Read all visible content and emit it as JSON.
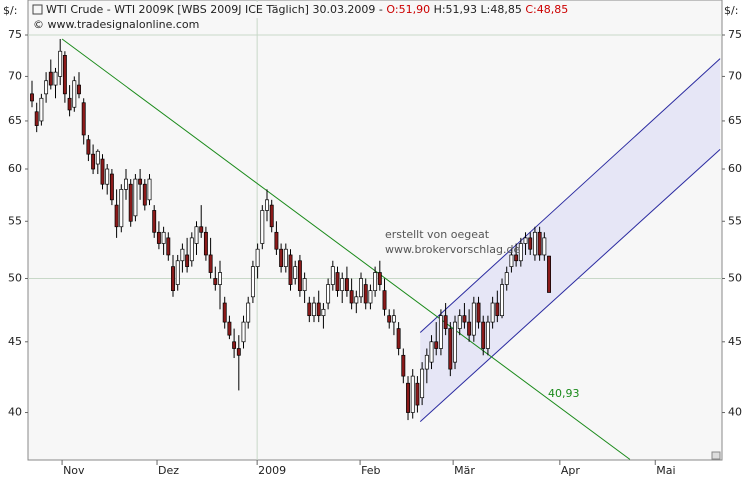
{
  "chart_data": {
    "type": "candlestick",
    "unit_left": "$/:",
    "unit_right": "$/:",
    "header": {
      "instrument": "WTI Crude - WTI 2009K [WBS 2009J ICE  Täglich] 30.03.2009 - ",
      "open": "O:51,90",
      "high": " H:51,93",
      "low": " L:48,85",
      "close": " C:48,85"
    },
    "source": "© www.tradesignalonline.com",
    "annotations": {
      "author": "erstellt von oegeat",
      "site": "www.brokervorschlag.de",
      "trend_value": "40,93"
    },
    "log_scale": true,
    "ylim": [
      36.96,
      79.5
    ],
    "yticks": [
      40,
      45,
      50,
      55,
      60,
      65,
      70,
      75
    ],
    "xlim": [
      -0.85,
      146.8
    ],
    "xticks": [
      {
        "value": 6.4,
        "label": "Nov"
      },
      {
        "value": 26.6,
        "label": "Dez"
      },
      {
        "value": 47.9,
        "label": "2009"
      },
      {
        "value": 69.8,
        "label": "Feb"
      },
      {
        "value": 89.6,
        "label": "Mär"
      },
      {
        "value": 112.3,
        "label": "Apr"
      },
      {
        "value": 132.6,
        "label": "Mai"
      }
    ],
    "xguides": [
      47.9
    ],
    "yguides": [
      50,
      75
    ],
    "up_color": "#ffffff",
    "down_color": "#8b1a1a",
    "trendline": {
      "color": "#1a8a1a",
      "x": [
        6.4,
        127.2
      ],
      "y": [
        74.5,
        37
      ]
    },
    "channel": {
      "color": "#2a2aa0",
      "fill": "#e6e6f6",
      "x": [
        82.6,
        146.4
      ],
      "lower": [
        39.4,
        62
      ],
      "upper": [
        45.7,
        72.1
      ]
    },
    "candles": [
      [
        68,
        69.5,
        66.5,
        67.2
      ],
      [
        66,
        67,
        63.8,
        64.5
      ],
      [
        65,
        68,
        64.5,
        67.5
      ],
      [
        68,
        70.5,
        67,
        69.5
      ],
      [
        70.5,
        72,
        68.5,
        69
      ],
      [
        69,
        71,
        67.5,
        70.5
      ],
      [
        70,
        74.5,
        69,
        73
      ],
      [
        72.5,
        73,
        67,
        68
      ],
      [
        67.5,
        69,
        65.5,
        66.2
      ],
      [
        66.5,
        70,
        66,
        69.5
      ],
      [
        69,
        70.5,
        67.5,
        68
      ],
      [
        67,
        67.5,
        62.5,
        63.5
      ],
      [
        63,
        63.5,
        60.8,
        61.5
      ],
      [
        61.5,
        62.5,
        59.5,
        60
      ],
      [
        60.5,
        62,
        59.5,
        61.8
      ],
      [
        61,
        61.5,
        58,
        58.5
      ],
      [
        58.5,
        60.5,
        57.5,
        60
      ],
      [
        59.5,
        60,
        56.5,
        57
      ],
      [
        56.5,
        58,
        53.5,
        54.5
      ],
      [
        54.5,
        58.5,
        54,
        58
      ],
      [
        58,
        60,
        57,
        59
      ],
      [
        58.5,
        59,
        54.5,
        55
      ],
      [
        55.5,
        59.5,
        55,
        59
      ],
      [
        59,
        60,
        57,
        58.5
      ],
      [
        58.5,
        59,
        56,
        56.5
      ],
      [
        57,
        59.5,
        56.5,
        59
      ],
      [
        56,
        56.5,
        53.5,
        54
      ],
      [
        54,
        55,
        52.5,
        53
      ],
      [
        53,
        54.5,
        52,
        54
      ],
      [
        53.5,
        54,
        51.5,
        52
      ],
      [
        51,
        52,
        48.5,
        49
      ],
      [
        49.5,
        52,
        49,
        51.5
      ],
      [
        51.5,
        53,
        50.5,
        52.5
      ],
      [
        52,
        53.5,
        50.5,
        51
      ],
      [
        51.5,
        54,
        51,
        53.5
      ],
      [
        53,
        55,
        52,
        54.5
      ],
      [
        54.5,
        56.5,
        53.5,
        54
      ],
      [
        54,
        54.5,
        51.5,
        52
      ],
      [
        52,
        53.5,
        50,
        50.5
      ],
      [
        50,
        51,
        49,
        49.5
      ],
      [
        49.5,
        51.5,
        47.5,
        50.5
      ],
      [
        48,
        48.5,
        46,
        46.5
      ],
      [
        46.5,
        47,
        45.2,
        45.5
      ],
      [
        45,
        46,
        43.8,
        44.5
      ],
      [
        44.5,
        45.5,
        41.5,
        44
      ],
      [
        45,
        47,
        44.5,
        46.5
      ],
      [
        46.5,
        48.5,
        46,
        48
      ],
      [
        48.5,
        51.5,
        48,
        51
      ],
      [
        51,
        53,
        50,
        52.5
      ],
      [
        53,
        56.5,
        52.5,
        56
      ],
      [
        56,
        58,
        55,
        57
      ],
      [
        56.5,
        57,
        54,
        54.5
      ],
      [
        54,
        55,
        52,
        52.5
      ],
      [
        52.5,
        53,
        50.5,
        51
      ],
      [
        51,
        53,
        50.5,
        52.5
      ],
      [
        52,
        52.5,
        49,
        49.5
      ],
      [
        50,
        51.5,
        49.5,
        51
      ],
      [
        51.5,
        52,
        48.5,
        49
      ],
      [
        49,
        50.5,
        48,
        50
      ],
      [
        48,
        48.5,
        46.5,
        47
      ],
      [
        47,
        48.5,
        46.5,
        48
      ],
      [
        48,
        49,
        46.5,
        47
      ],
      [
        47,
        48,
        46,
        47.5
      ],
      [
        48,
        50,
        47.5,
        49.5
      ],
      [
        49.5,
        51.5,
        49,
        51
      ],
      [
        50.5,
        51,
        48.5,
        49
      ],
      [
        49,
        50.5,
        48,
        50
      ],
      [
        50,
        51,
        48.5,
        49
      ],
      [
        49,
        50,
        47.5,
        48
      ],
      [
        48,
        49,
        47.2,
        48.5
      ],
      [
        48.5,
        50.5,
        48,
        50
      ],
      [
        49.5,
        50,
        47.5,
        48
      ],
      [
        48,
        49.5,
        47.5,
        49
      ],
      [
        49,
        51,
        48.5,
        50.5
      ],
      [
        50.5,
        51.5,
        49,
        49.5
      ],
      [
        49,
        50,
        47,
        47.5
      ],
      [
        47,
        47.5,
        46,
        46.5
      ],
      [
        46.5,
        47.5,
        45.5,
        47
      ],
      [
        46,
        46.5,
        44,
        44.5
      ],
      [
        44,
        44.5,
        42,
        42.5
      ],
      [
        42,
        42.5,
        39.5,
        40
      ],
      [
        40,
        43,
        39.6,
        42.5
      ],
      [
        42,
        42.5,
        40,
        40.5
      ],
      [
        41,
        43.5,
        40.5,
        43
      ],
      [
        43,
        44.5,
        42,
        44
      ],
      [
        43.5,
        45.5,
        43,
        45
      ],
      [
        45,
        46.5,
        44,
        44.5
      ],
      [
        44.5,
        47.5,
        44,
        47
      ],
      [
        47,
        48,
        45.5,
        46
      ],
      [
        46,
        46.5,
        42.5,
        43
      ],
      [
        43.5,
        47,
        43,
        46.5
      ],
      [
        46,
        47.5,
        45.5,
        47
      ],
      [
        47,
        48,
        46,
        46.5
      ],
      [
        46.5,
        47.5,
        45,
        45.5
      ],
      [
        45.5,
        48.5,
        45,
        48
      ],
      [
        48,
        48.5,
        46,
        46.5
      ],
      [
        46.5,
        47,
        44,
        44.5
      ],
      [
        44.5,
        47,
        44,
        46.5
      ],
      [
        46.5,
        48.5,
        46,
        48
      ],
      [
        48,
        49,
        46.5,
        47
      ],
      [
        47,
        50,
        46.8,
        49.5
      ],
      [
        49.5,
        51,
        49,
        50.5
      ],
      [
        51,
        52.5,
        50.5,
        52
      ],
      [
        52,
        53,
        51,
        51.5
      ],
      [
        51.5,
        53.5,
        51,
        53
      ],
      [
        53,
        54,
        52,
        53.5
      ],
      [
        53.5,
        54,
        52,
        52.5
      ],
      [
        52,
        54.5,
        51.5,
        54
      ],
      [
        54,
        54.5,
        51.5,
        52
      ],
      [
        52,
        54,
        51.5,
        53.5
      ],
      [
        51.9,
        51.93,
        48.85,
        48.85
      ]
    ]
  }
}
